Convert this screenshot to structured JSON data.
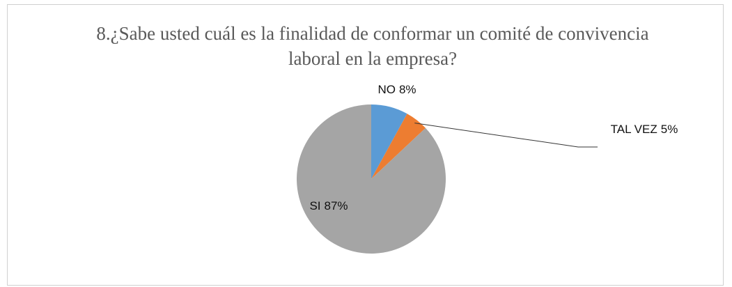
{
  "chart_data": {
    "type": "pie",
    "title": "8.¿Sabe usted cuál es la finalidad de conformar un comité de convivencia laboral en la empresa?",
    "categories": [
      "NO",
      "TAL VEZ",
      "SI"
    ],
    "values": [
      8,
      5,
      87
    ],
    "value_labels": [
      "8%",
      "5%",
      "87%"
    ],
    "colors": [
      "#5b9bd5",
      "#ed7d31",
      "#a5a5a5"
    ]
  }
}
